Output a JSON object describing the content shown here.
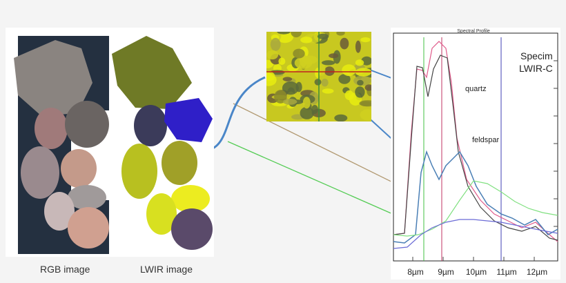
{
  "captions": {
    "rgb": "RGB image",
    "lwir": "LWIR  image"
  },
  "plot": {
    "title": "Spectral Profile",
    "camera_line1": "Specim",
    "camera_line2": "LWIR-C",
    "label_quartz": "quartz",
    "label_feldspar": "feldspar",
    "x_ticks": [
      "8µm",
      "9µm",
      "10µm",
      "11µm",
      "12µm"
    ]
  },
  "colors": {
    "quartz_line": "#e05a8a",
    "feldspar_line": "#4a7fb5",
    "green_line": "#80e080",
    "blue_line": "#6b6bd6",
    "pointer_blue": "#4a86c8",
    "pointer_tan": "#b29a72",
    "pointer_green": "#55cc55"
  }
}
